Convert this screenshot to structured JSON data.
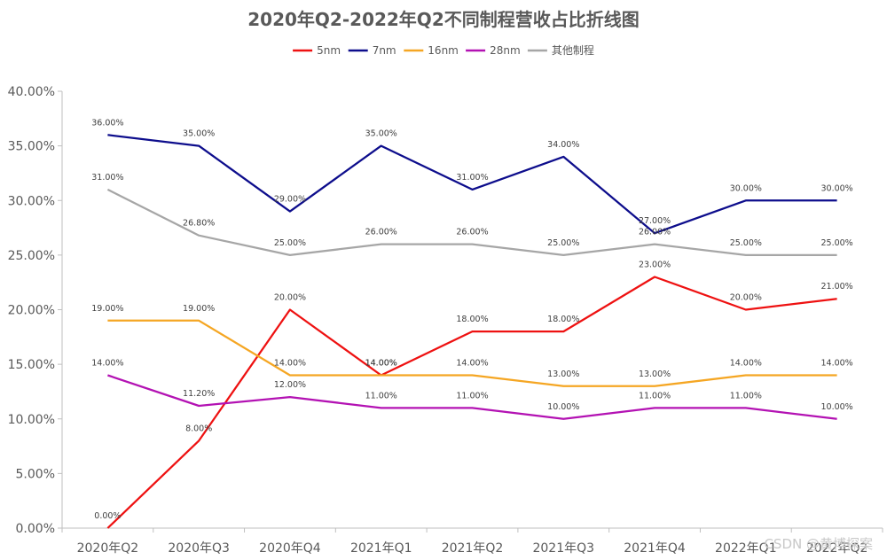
{
  "chart_data": {
    "type": "line",
    "title": "2020年Q2-2022年Q2不同制程营收占比折线图",
    "categories": [
      "2020年Q2",
      "2020年Q3",
      "2020年Q4",
      "2021年Q1",
      "2021年Q2",
      "2021年Q3",
      "2021年Q4",
      "2022年Q1",
      "2022年Q2"
    ],
    "ylim": [
      0,
      40
    ],
    "yticks": [
      0,
      5,
      10,
      15,
      20,
      25,
      30,
      35,
      40
    ],
    "ytick_labels": [
      "0.00%",
      "5.00%",
      "10.00%",
      "15.00%",
      "20.00%",
      "25.00%",
      "30.00%",
      "35.00%",
      "40.00%"
    ],
    "legend_position": "top-center",
    "grid": false,
    "series": [
      {
        "name": "5nm",
        "color": "#ee1111",
        "values": [
          0,
          8,
          20,
          14,
          18,
          18,
          23,
          20,
          21
        ],
        "labels": [
          "0.00%",
          "8.00%",
          "20.00%",
          "14.00%",
          "18.00%",
          "18.00%",
          "23.00%",
          "20.00%",
          "21.00%"
        ]
      },
      {
        "name": "7nm",
        "color": "#0d0d8c",
        "values": [
          36,
          35,
          29,
          35,
          31,
          34,
          27,
          30,
          30
        ],
        "labels": [
          "36.00%",
          "35.00%",
          "29.00%",
          "35.00%",
          "31.00%",
          "34.00%",
          "27.00%",
          "30.00%",
          "30.00%"
        ]
      },
      {
        "name": "16nm",
        "color": "#f5a623",
        "values": [
          19,
          19,
          14,
          14,
          14,
          13,
          13,
          14,
          14
        ],
        "labels": [
          "19.00%",
          "19.00%",
          "14.00%",
          "14.00%",
          "14.00%",
          "13.00%",
          "13.00%",
          "14.00%",
          "14.00%"
        ]
      },
      {
        "name": "28nm",
        "color": "#b312b3",
        "values": [
          14,
          11.2,
          12,
          11,
          11,
          10,
          11,
          11,
          10
        ],
        "labels": [
          "14.00%",
          "11.20%",
          "12.00%",
          "11.00%",
          "11.00%",
          "10.00%",
          "11.00%",
          "11.00%",
          "10.00%"
        ]
      },
      {
        "name": "其他制程",
        "color": "#a6a6a6",
        "values": [
          31,
          26.8,
          25,
          26,
          26,
          25,
          26,
          25,
          25
        ],
        "labels": [
          "31.00%",
          "26.80%",
          "25.00%",
          "26.00%",
          "26.00%",
          "25.00%",
          "26.00%",
          "25.00%",
          "25.00%"
        ]
      }
    ]
  },
  "watermark": "CSDN @黄博探案"
}
